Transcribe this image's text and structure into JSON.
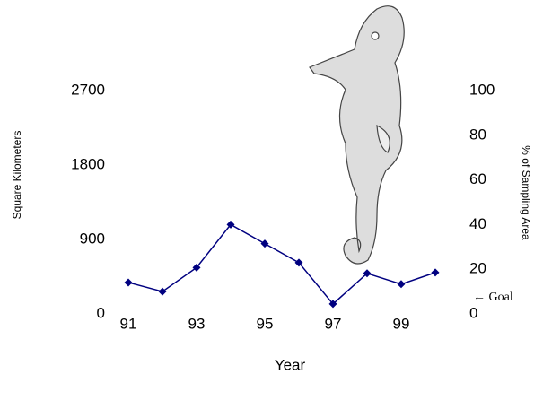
{
  "chart_data": {
    "type": "line",
    "x": [
      91,
      92,
      93,
      94,
      95,
      96,
      97,
      98,
      99,
      100
    ],
    "series": [
      {
        "name": "Square Kilometers",
        "color": "#000080",
        "values": [
          380,
          270,
          560,
          1080,
          850,
          620,
          120,
          490,
          360,
          500
        ]
      }
    ],
    "xlim": [
      90.5,
      100.5
    ],
    "xticks": [
      91,
      93,
      95,
      97,
      99
    ],
    "ylim": [
      0,
      2700
    ],
    "yticks": [
      0,
      900,
      1800,
      2700
    ],
    "y2lim": [
      0,
      100
    ],
    "y2ticks": [
      0,
      20,
      40,
      60,
      80,
      100
    ],
    "xlabel": "Year",
    "ylabel": "Square Kilometers",
    "y2label": "% of Sampling Area",
    "annotation": "← Goal"
  }
}
